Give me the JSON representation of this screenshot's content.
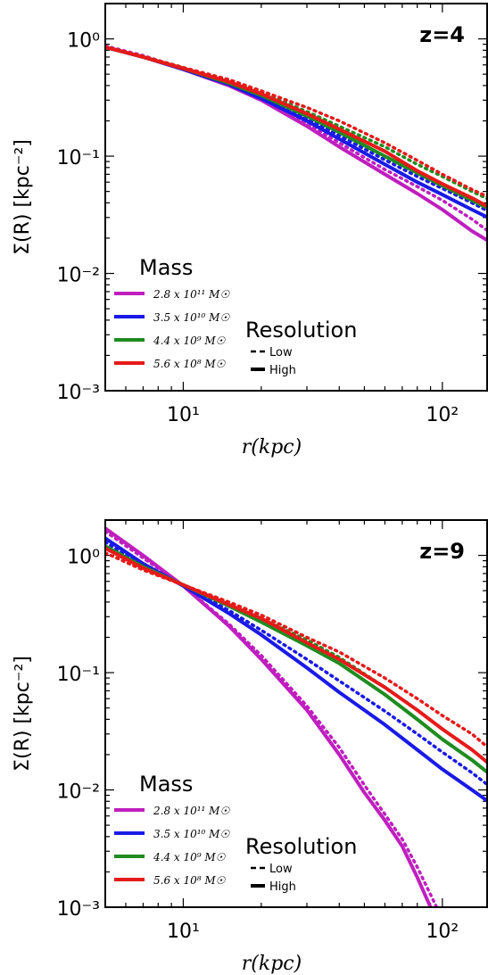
{
  "chart_data": [
    {
      "type": "line",
      "panel_label": "z=4",
      "panel_label_color": "#1ab5b5",
      "xlabel": "r(kpc)",
      "ylabel": "Σ(R) [kpc⁻²]",
      "xscale": "log",
      "yscale": "log",
      "xlim": [
        5,
        150
      ],
      "ylim": [
        0.001,
        2
      ],
      "x_ticks": [
        {
          "value": 10,
          "label": "10¹"
        },
        {
          "value": 100,
          "label": "10²"
        }
      ],
      "y_ticks": [
        {
          "value": 0.001,
          "label": "10⁻³"
        },
        {
          "value": 0.01,
          "label": "10⁻²"
        },
        {
          "value": 0.1,
          "label": "10⁻¹"
        },
        {
          "value": 1,
          "label": "10⁰"
        }
      ],
      "legend_mass_title": "Mass",
      "legend_resolution_title": "Resolution",
      "resolution_entries": [
        {
          "label": "Low",
          "style": "dotted"
        },
        {
          "label": "High",
          "style": "solid"
        }
      ],
      "series": [
        {
          "name": "2.8 x 10¹¹ M☉",
          "color": "#bf1fbf",
          "high": {
            "x": [
              5,
              7,
              10,
              15,
              20,
              30,
              40,
              60,
              80,
              100,
              130,
              150
            ],
            "y": [
              0.85,
              0.7,
              0.55,
              0.4,
              0.3,
              0.18,
              0.12,
              0.07,
              0.048,
              0.035,
              0.023,
              0.019
            ]
          },
          "low": {
            "x": [
              5,
              7,
              10,
              15,
              20,
              30,
              40,
              60,
              80,
              100,
              130,
              150
            ],
            "y": [
              0.87,
              0.72,
              0.56,
              0.41,
              0.31,
              0.19,
              0.13,
              0.077,
              0.055,
              0.042,
              0.029,
              0.023
            ]
          }
        },
        {
          "name": "3.5 x 10¹⁰ M☉",
          "color": "#1a1ae6",
          "high": {
            "x": [
              5,
              7,
              10,
              15,
              20,
              30,
              40,
              60,
              80,
              100,
              130,
              150
            ],
            "y": [
              0.85,
              0.7,
              0.55,
              0.41,
              0.31,
              0.2,
              0.14,
              0.085,
              0.06,
              0.047,
              0.035,
              0.03
            ]
          },
          "low": {
            "x": [
              5,
              7,
              10,
              15,
              20,
              30,
              40,
              60,
              80,
              100,
              130,
              150
            ],
            "y": [
              0.86,
              0.71,
              0.56,
              0.42,
              0.32,
              0.21,
              0.15,
              0.093,
              0.067,
              0.053,
              0.04,
              0.034
            ]
          }
        },
        {
          "name": "4.4 x 10⁹ M☉",
          "color": "#1f8c1f",
          "high": {
            "x": [
              5,
              7,
              10,
              15,
              20,
              30,
              40,
              60,
              80,
              100,
              130,
              150
            ],
            "y": [
              0.85,
              0.7,
              0.56,
              0.42,
              0.33,
              0.22,
              0.16,
              0.1,
              0.072,
              0.056,
              0.042,
              0.036
            ]
          },
          "low": {
            "x": [
              5,
              7,
              10,
              15,
              20,
              30,
              40,
              60,
              80,
              100,
              130,
              150
            ],
            "y": [
              0.86,
              0.71,
              0.57,
              0.44,
              0.35,
              0.24,
              0.18,
              0.12,
              0.085,
              0.067,
              0.05,
              0.043
            ]
          }
        },
        {
          "name": "5.6 x 10⁸ M☉",
          "color": "#e61a1a",
          "high": {
            "x": [
              5,
              7,
              10,
              15,
              20,
              30,
              40,
              60,
              80,
              100,
              130,
              150
            ],
            "y": [
              0.85,
              0.7,
              0.56,
              0.43,
              0.34,
              0.23,
              0.17,
              0.11,
              0.075,
              0.058,
              0.044,
              0.037
            ]
          },
          "low": {
            "x": [
              5,
              7,
              10,
              15,
              20,
              30,
              40,
              60,
              80,
              100,
              130,
              150
            ],
            "y": [
              0.86,
              0.71,
              0.57,
              0.45,
              0.36,
              0.26,
              0.2,
              0.13,
              0.092,
              0.07,
              0.052,
              0.045
            ]
          }
        }
      ]
    },
    {
      "type": "line",
      "panel_label": "z=9",
      "panel_label_color": "#1ab5b5",
      "xlabel": "r(kpc)",
      "ylabel": "Σ(R) [kpc⁻²]",
      "xscale": "log",
      "yscale": "log",
      "xlim": [
        5,
        150
      ],
      "ylim": [
        0.001,
        2
      ],
      "x_ticks": [
        {
          "value": 10,
          "label": "10¹"
        },
        {
          "value": 100,
          "label": "10²"
        }
      ],
      "y_ticks": [
        {
          "value": 0.001,
          "label": "10⁻³"
        },
        {
          "value": 0.01,
          "label": "10⁻²"
        },
        {
          "value": 0.1,
          "label": "10⁻¹"
        },
        {
          "value": 1,
          "label": "10⁰"
        }
      ],
      "legend_mass_title": "Mass",
      "legend_resolution_title": "Resolution",
      "resolution_entries": [
        {
          "label": "Low",
          "style": "dotted"
        },
        {
          "label": "High",
          "style": "solid"
        }
      ],
      "series": [
        {
          "name": "2.8 x 10¹¹ M☉",
          "color": "#bf1fbf",
          "high": {
            "x": [
              5,
              7,
              10,
              15,
              20,
              30,
              40,
              50,
              60,
              70,
              80,
              90
            ],
            "y": [
              1.7,
              1.0,
              0.55,
              0.25,
              0.13,
              0.048,
              0.02,
              0.0095,
              0.0055,
              0.0033,
              0.0018,
              0.001
            ]
          },
          "low": {
            "x": [
              5,
              7,
              10,
              15,
              20,
              30,
              40,
              50,
              60,
              70,
              80,
              95
            ],
            "y": [
              1.6,
              0.95,
              0.55,
              0.26,
              0.14,
              0.052,
              0.023,
              0.011,
              0.0062,
              0.0038,
              0.0022,
              0.001
            ]
          }
        },
        {
          "name": "3.5 x 10¹⁰ M☉",
          "color": "#1a1ae6",
          "high": {
            "x": [
              5,
              7,
              10,
              15,
              20,
              30,
              40,
              60,
              80,
              100,
              130,
              150
            ],
            "y": [
              1.4,
              0.85,
              0.55,
              0.32,
              0.21,
              0.11,
              0.068,
              0.036,
              0.022,
              0.015,
              0.01,
              0.008
            ]
          },
          "low": {
            "x": [
              5,
              7,
              10,
              15,
              20,
              30,
              40,
              60,
              80,
              100,
              130,
              150
            ],
            "y": [
              1.3,
              0.82,
              0.55,
              0.34,
              0.23,
              0.13,
              0.085,
              0.047,
              0.03,
              0.021,
              0.014,
              0.011
            ]
          }
        },
        {
          "name": "4.4 x 10⁹ M☉",
          "color": "#1f8c1f",
          "high": {
            "x": [
              5,
              7,
              10,
              15,
              20,
              30,
              40,
              60,
              80,
              100,
              130,
              150
            ],
            "y": [
              1.2,
              0.8,
              0.56,
              0.37,
              0.27,
              0.17,
              0.12,
              0.065,
              0.04,
              0.027,
              0.018,
              0.014
            ]
          },
          "low": {
            "x": [
              5,
              7,
              10,
              15,
              20,
              30,
              40,
              60,
              80,
              100,
              130,
              150
            ],
            "y": [
              1.15,
              0.78,
              0.56,
              0.38,
              0.29,
              0.19,
              0.135,
              0.075,
              0.048,
              0.033,
              0.022,
              0.017
            ]
          }
        },
        {
          "name": "5.6 x 10⁸ M☉",
          "color": "#e61a1a",
          "high": {
            "x": [
              5,
              7,
              10,
              15,
              20,
              30,
              40,
              60,
              80,
              100,
              130,
              150
            ],
            "y": [
              1.15,
              0.78,
              0.56,
              0.38,
              0.29,
              0.18,
              0.13,
              0.075,
              0.048,
              0.033,
              0.022,
              0.017
            ]
          },
          "low": {
            "x": [
              5,
              7,
              10,
              15,
              20,
              30,
              40,
              60,
              80,
              100,
              130,
              150
            ],
            "y": [
              1.05,
              0.75,
              0.56,
              0.4,
              0.31,
              0.2,
              0.15,
              0.09,
              0.06,
              0.043,
              0.03,
              0.023
            ]
          }
        }
      ]
    }
  ]
}
